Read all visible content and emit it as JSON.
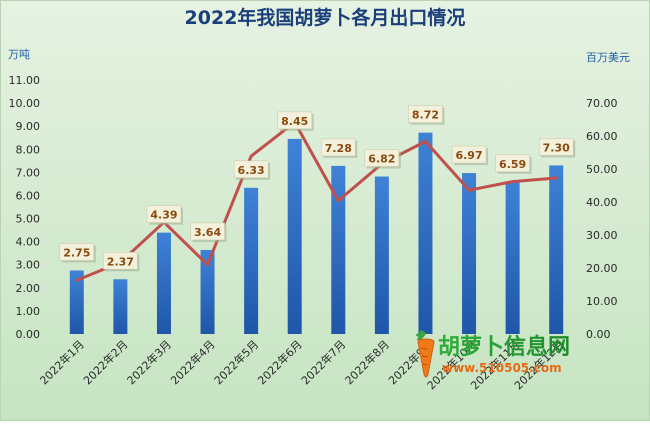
{
  "chart_data": {
    "type": "bar",
    "title": "2022年我国胡萝卜各月出口情况",
    "categories": [
      "2022年1月",
      "2022年2月",
      "2022年3月",
      "2022年4月",
      "2022年5月",
      "2022年6月",
      "2022年7月",
      "2022年8月",
      "2022年9月",
      "2022年10月",
      "2022年11月",
      "2022年12月"
    ],
    "y_left": {
      "unit": "万吨",
      "lim": [
        0,
        11
      ],
      "ticks": [
        "0.00",
        "1.00",
        "2.00",
        "3.00",
        "4.00",
        "5.00",
        "6.00",
        "7.00",
        "8.00",
        "9.00",
        "10.00",
        "11.00"
      ]
    },
    "y_right": {
      "unit": "百万美元",
      "lim": [
        0,
        77
      ],
      "ticks": [
        "0.00",
        "10.00",
        "20.00",
        "30.00",
        "40.00",
        "50.00",
        "60.00",
        "70.00"
      ]
    },
    "series": [
      {
        "type": "bar",
        "axis": "left",
        "color": "#2f6cc0",
        "values": [
          2.75,
          2.37,
          4.39,
          3.64,
          6.33,
          8.45,
          7.28,
          6.82,
          8.72,
          6.97,
          6.59,
          7.3
        ],
        "labels": [
          "2.75",
          "2.37",
          "4.39",
          "3.64",
          "6.33",
          "8.45",
          "7.28",
          "6.82",
          "8.72",
          "6.97",
          "6.59",
          "7.30"
        ]
      },
      {
        "type": "line",
        "axis": "right",
        "color": "#c0504d",
        "values": [
          16.3,
          21.7,
          33.9,
          21.0,
          53.9,
          64.2,
          40.4,
          51.6,
          58.4,
          43.6,
          46.2,
          47.3
        ]
      }
    ],
    "grid": false,
    "legend": "none"
  },
  "watermark": {
    "name": "胡萝卜信息网",
    "url": "www.510505.com"
  }
}
